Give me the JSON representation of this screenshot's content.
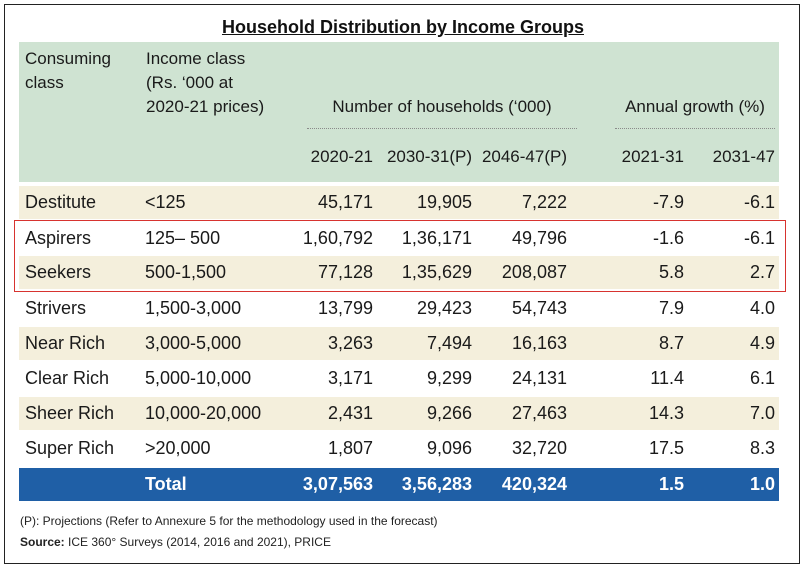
{
  "title": "Household Distribution by Income Groups",
  "header": {
    "consuming_class": [
      "Consuming",
      "class"
    ],
    "income_class": [
      "Income class",
      "(Rs. ‘000 at",
      "2020-21 prices)"
    ],
    "num_households": "Number of households (‘000)",
    "annual_growth": "Annual growth (%)",
    "years": [
      "2020-21",
      "2030-31(P)",
      "2046-47(P)"
    ],
    "growth_periods": [
      "2021-31",
      "2031-47"
    ]
  },
  "rows": [
    {
      "class": "Destitute",
      "income": "<125",
      "v2020": "45,171",
      "v2030": "19,905",
      "v2046": "7,222",
      "g2131": "-7.9",
      "g3147": "-6.1"
    },
    {
      "class": "Aspirers",
      "income": "125– 500",
      "v2020": "1,60,792",
      "v2030": "1,36,171",
      "v2046": "49,796",
      "g2131": "-1.6",
      "g3147": "-6.1"
    },
    {
      "class": "Seekers",
      "income": "500-1,500",
      "v2020": "77,128",
      "v2030": "1,35,629",
      "v2046": "208,087",
      "g2131": "5.8",
      "g3147": "2.7"
    },
    {
      "class": "Strivers",
      "income": "1,500-3,000",
      "v2020": "13,799",
      "v2030": "29,423",
      "v2046": "54,743",
      "g2131": "7.9",
      "g3147": "4.0"
    },
    {
      "class": "Near Rich",
      "income": "3,000-5,000",
      "v2020": "3,263",
      "v2030": "7,494",
      "v2046": "16,163",
      "g2131": "8.7",
      "g3147": "4.9"
    },
    {
      "class": "Clear Rich",
      "income": "5,000-10,000",
      "v2020": "3,171",
      "v2030": "9,299",
      "v2046": "24,131",
      "g2131": "11.4",
      "g3147": "6.1"
    },
    {
      "class": "Sheer Rich",
      "income": "10,000-20,000",
      "v2020": "2,431",
      "v2030": "9,266",
      "v2046": "27,463",
      "g2131": "14.3",
      "g3147": "7.0"
    },
    {
      "class": "Super Rich",
      "income": ">20,000",
      "v2020": "1,807",
      "v2030": "9,096",
      "v2046": "32,720",
      "g2131": "17.5",
      "g3147": "8.3"
    }
  ],
  "total": {
    "label": "Total",
    "v2020": "3,07,563",
    "v2030": "3,56,283",
    "v2046": "420,324",
    "g2131": "1.5",
    "g3147": "1.0"
  },
  "footnote": "(P): Projections (Refer to Annexure 5 for the methodology used in the forecast)",
  "source_label": "Source:",
  "source_text": " ICE 360° Surveys (2014, 2016 and 2021), PRICE",
  "colors": {
    "header_bg": "#cfe3d2",
    "shaded_row": "#f4efdc",
    "total_bg": "#1f5fa6",
    "highlight_border": "#d7332f"
  }
}
